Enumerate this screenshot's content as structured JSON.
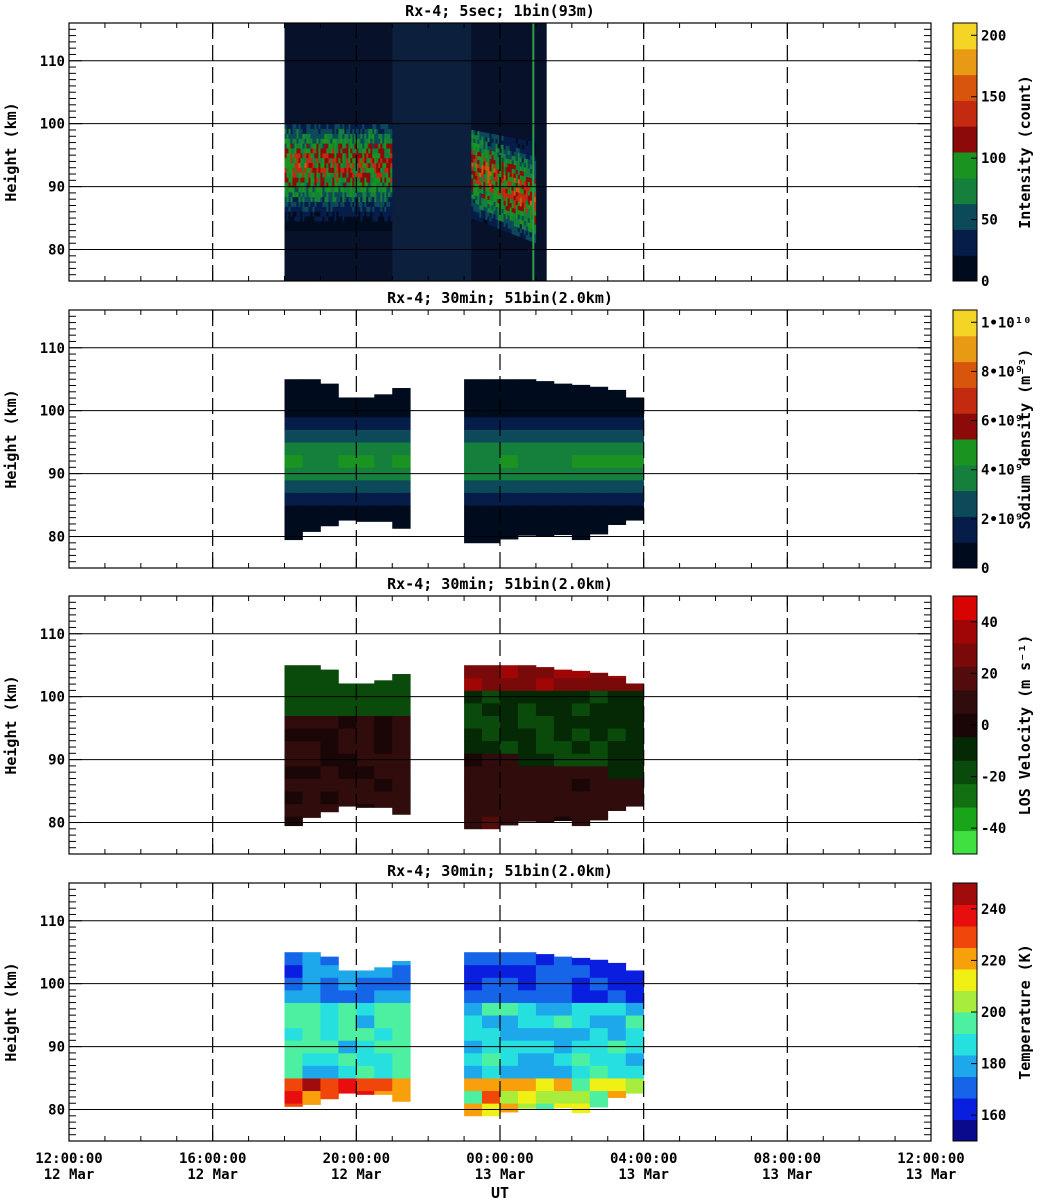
{
  "xaxis": {
    "label": "UT",
    "ticks": [
      {
        "time": "12:00:00",
        "date": "12 Mar"
      },
      {
        "time": "16:00:00",
        "date": "12 Mar"
      },
      {
        "time": "20:00:00",
        "date": "12 Mar"
      },
      {
        "time": "00:00:00",
        "date": "13 Mar"
      },
      {
        "time": "04:00:00",
        "date": "13 Mar"
      },
      {
        "time": "08:00:00",
        "date": "13 Mar"
      },
      {
        "time": "12:00:00",
        "date": "13 Mar"
      }
    ]
  },
  "chart_data": [
    {
      "type": "heatmap",
      "title": "Rx-4;  5sec; 1bin(93m)",
      "ylabel": "Height (km)",
      "yticks": [
        "80",
        "90",
        "100",
        "110"
      ],
      "ylim": [
        75,
        116
      ],
      "xlim_hours": [
        0,
        24
      ],
      "colorbar": {
        "label": "Intensity (count)",
        "range": [
          0,
          210
        ],
        "ticks": [
          "0",
          "50",
          "100",
          "150",
          "200"
        ],
        "colors": [
          "#000c1e",
          "#061d4a",
          "#0c4a5a",
          "#14803c",
          "#1a9320",
          "#8c0a0a",
          "#c42a10",
          "#d8560c",
          "#e89a14",
          "#f4d424"
        ]
      },
      "data_extent_hours": [
        6.0,
        13.3
      ],
      "layers": [
        {
          "name": "Na layer segment 1",
          "hours": [
            6.0,
            9.0
          ],
          "heights_km": [
            83,
            100
          ],
          "peak_km": 93,
          "peak_count": 130
        },
        {
          "name": "Na layer segment 2",
          "hours": [
            11.2,
            13.0
          ],
          "heights_km": [
            83,
            101
          ],
          "peak_km": 90,
          "peak_count": 140
        },
        {
          "name": "sparse dark band",
          "hours": [
            9.0,
            11.2
          ],
          "heights_km": [
            75,
            116
          ],
          "peak_count": 10
        }
      ]
    },
    {
      "type": "heatmap",
      "title": "Rx-4; 30min; 51bin(2.0km)",
      "ylabel": "Height (km)",
      "yticks": [
        "80",
        "90",
        "100",
        "110"
      ],
      "ylim": [
        75,
        116
      ],
      "xlim_hours": [
        0,
        24
      ],
      "colorbar": {
        "label": "Sodium density (m⁻³)",
        "range": [
          0,
          10500000000.0
        ],
        "ticks": [
          "0",
          "2•10⁹",
          "4•10⁹",
          "6•10⁹",
          "8•10⁹",
          "1•10¹⁰"
        ],
        "colors": [
          "#000c1e",
          "#061d4a",
          "#0c4a5a",
          "#14803c",
          "#1a9320",
          "#8c0a0a",
          "#c42a10",
          "#d8560c",
          "#e89a14",
          "#f4d424"
        ]
      },
      "time_bins_hours": [
        6.0,
        6.5,
        7.0,
        7.5,
        8.0,
        8.5,
        9.0,
        11.0,
        11.5,
        12.0,
        12.5,
        13.0,
        13.5,
        14.0,
        14.5,
        15.0,
        15.5
      ],
      "height_bins_km": [
        80,
        82,
        84,
        86,
        88,
        90,
        92,
        94,
        96,
        98,
        100,
        102,
        104
      ],
      "column_extent_km": [
        [
          79.5,
          105.5
        ],
        [
          80.8,
          105.5
        ],
        [
          81.7,
          104.3
        ],
        [
          82.6,
          102.1
        ],
        [
          82.4,
          102.1
        ],
        [
          82.4,
          102.6
        ],
        [
          81.3,
          103.6
        ],
        [
          77.6,
          105.1
        ],
        [
          78.0,
          105.3
        ],
        [
          79.6,
          105.4
        ],
        [
          80.2,
          105.1
        ],
        [
          80.1,
          104.7
        ],
        [
          80.3,
          104.3
        ],
        [
          79.5,
          104.1
        ],
        [
          80.4,
          103.8
        ],
        [
          81.9,
          103.3
        ],
        [
          82.6,
          102.1
        ]
      ],
      "values": {
        "description_of_units": "sodium density m^-3",
        "peak_height_km": 92,
        "peak_value": 4200000000.0,
        "layer_edges_value": 500000000.0
      }
    },
    {
      "type": "heatmap",
      "title": "Rx-4; 30min; 51bin(2.0km)",
      "ylabel": "Height (km)",
      "yticks": [
        "80",
        "90",
        "100",
        "110"
      ],
      "ylim": [
        75,
        116
      ],
      "xlim_hours": [
        0,
        24
      ],
      "colorbar": {
        "label": "LOS Velocity (m s⁻¹)",
        "range": [
          -50,
          50
        ],
        "ticks": [
          "-40",
          "-20",
          "0",
          "20",
          "40"
        ],
        "colors": [
          "#40e040",
          "#1aa41a",
          "#127012",
          "#0a4a0a",
          "#052805",
          "#1a0606",
          "#300c0c",
          "#520c0c",
          "#7a0a0a",
          "#a00606",
          "#d80404"
        ]
      },
      "time_bins_hours": [
        6.0,
        6.5,
        7.0,
        7.5,
        8.0,
        8.5,
        9.0,
        11.0,
        11.5,
        12.0,
        12.5,
        13.0,
        13.5,
        14.0,
        14.5,
        15.0,
        15.5
      ],
      "height_bins_km": [
        80,
        82,
        84,
        86,
        88,
        90,
        92,
        94,
        96,
        98,
        100,
        102,
        104
      ],
      "column_extent_km": [
        [
          79.5,
          105.5
        ],
        [
          80.8,
          105.5
        ],
        [
          81.7,
          104.3
        ],
        [
          82.6,
          102.1
        ],
        [
          82.4,
          102.1
        ],
        [
          82.4,
          102.6
        ],
        [
          81.3,
          103.6
        ],
        [
          77.6,
          105.1
        ],
        [
          78.0,
          105.3
        ],
        [
          79.6,
          105.4
        ],
        [
          80.2,
          105.1
        ],
        [
          80.1,
          104.7
        ],
        [
          80.3,
          104.3
        ],
        [
          79.5,
          104.1
        ],
        [
          80.4,
          103.8
        ],
        [
          81.9,
          103.3
        ],
        [
          82.6,
          102.1
        ]
      ],
      "values": {
        "description_of_units": "m s^-1",
        "upper_first_segment": -20,
        "lower_first_segment": 6,
        "upper_second_segment": 30,
        "mid_second_segment": -12,
        "lower_second_segment": 8
      }
    },
    {
      "type": "heatmap",
      "title": "Rx-4; 30min; 51bin(2.0km)",
      "ylabel": "Height (km)",
      "yticks": [
        "80",
        "90",
        "100",
        "110"
      ],
      "ylim": [
        75,
        116
      ],
      "xlim_hours": [
        0,
        24
      ],
      "colorbar": {
        "label": "Temperature (K)",
        "range": [
          150,
          250
        ],
        "ticks": [
          "160",
          "180",
          "200",
          "220",
          "240"
        ],
        "colors": [
          "#0a0a8c",
          "#0a1ee0",
          "#1664e8",
          "#1ea8ec",
          "#26e0e0",
          "#4cf0a0",
          "#a8ec3c",
          "#f0f014",
          "#f8a00c",
          "#f0460a",
          "#e80e0e",
          "#a00c0c"
        ]
      },
      "time_bins_hours": [
        6.0,
        6.5,
        7.0,
        7.5,
        8.0,
        8.5,
        9.0,
        11.0,
        11.5,
        12.0,
        12.5,
        13.0,
        13.5,
        14.0,
        14.5,
        15.0,
        15.5
      ],
      "height_bins_km": [
        80,
        82,
        84,
        86,
        88,
        90,
        92,
        94,
        96,
        98,
        100,
        102,
        104
      ],
      "column_extent_km": [
        [
          80.5,
          105.5
        ],
        [
          80.8,
          105.5
        ],
        [
          81.7,
          104.3
        ],
        [
          82.6,
          102.1
        ],
        [
          82.4,
          102.1
        ],
        [
          82.4,
          102.6
        ],
        [
          81.3,
          103.6
        ],
        [
          77.6,
          105.1
        ],
        [
          78.0,
          105.3
        ],
        [
          79.6,
          105.4
        ],
        [
          80.2,
          105.1
        ],
        [
          80.1,
          104.7
        ],
        [
          80.3,
          104.3
        ],
        [
          79.5,
          104.1
        ],
        [
          80.4,
          103.8
        ],
        [
          81.9,
          103.3
        ],
        [
          82.6,
          102.1
        ]
      ],
      "values": {
        "description_of_units": "K",
        "top_first_segment": 170,
        "mid_first_segment": 190,
        "bottom_first_segment": 235,
        "top_second_segment": 165,
        "mid_second_segment": 185,
        "bottom_second_segment": 215
      }
    }
  ]
}
